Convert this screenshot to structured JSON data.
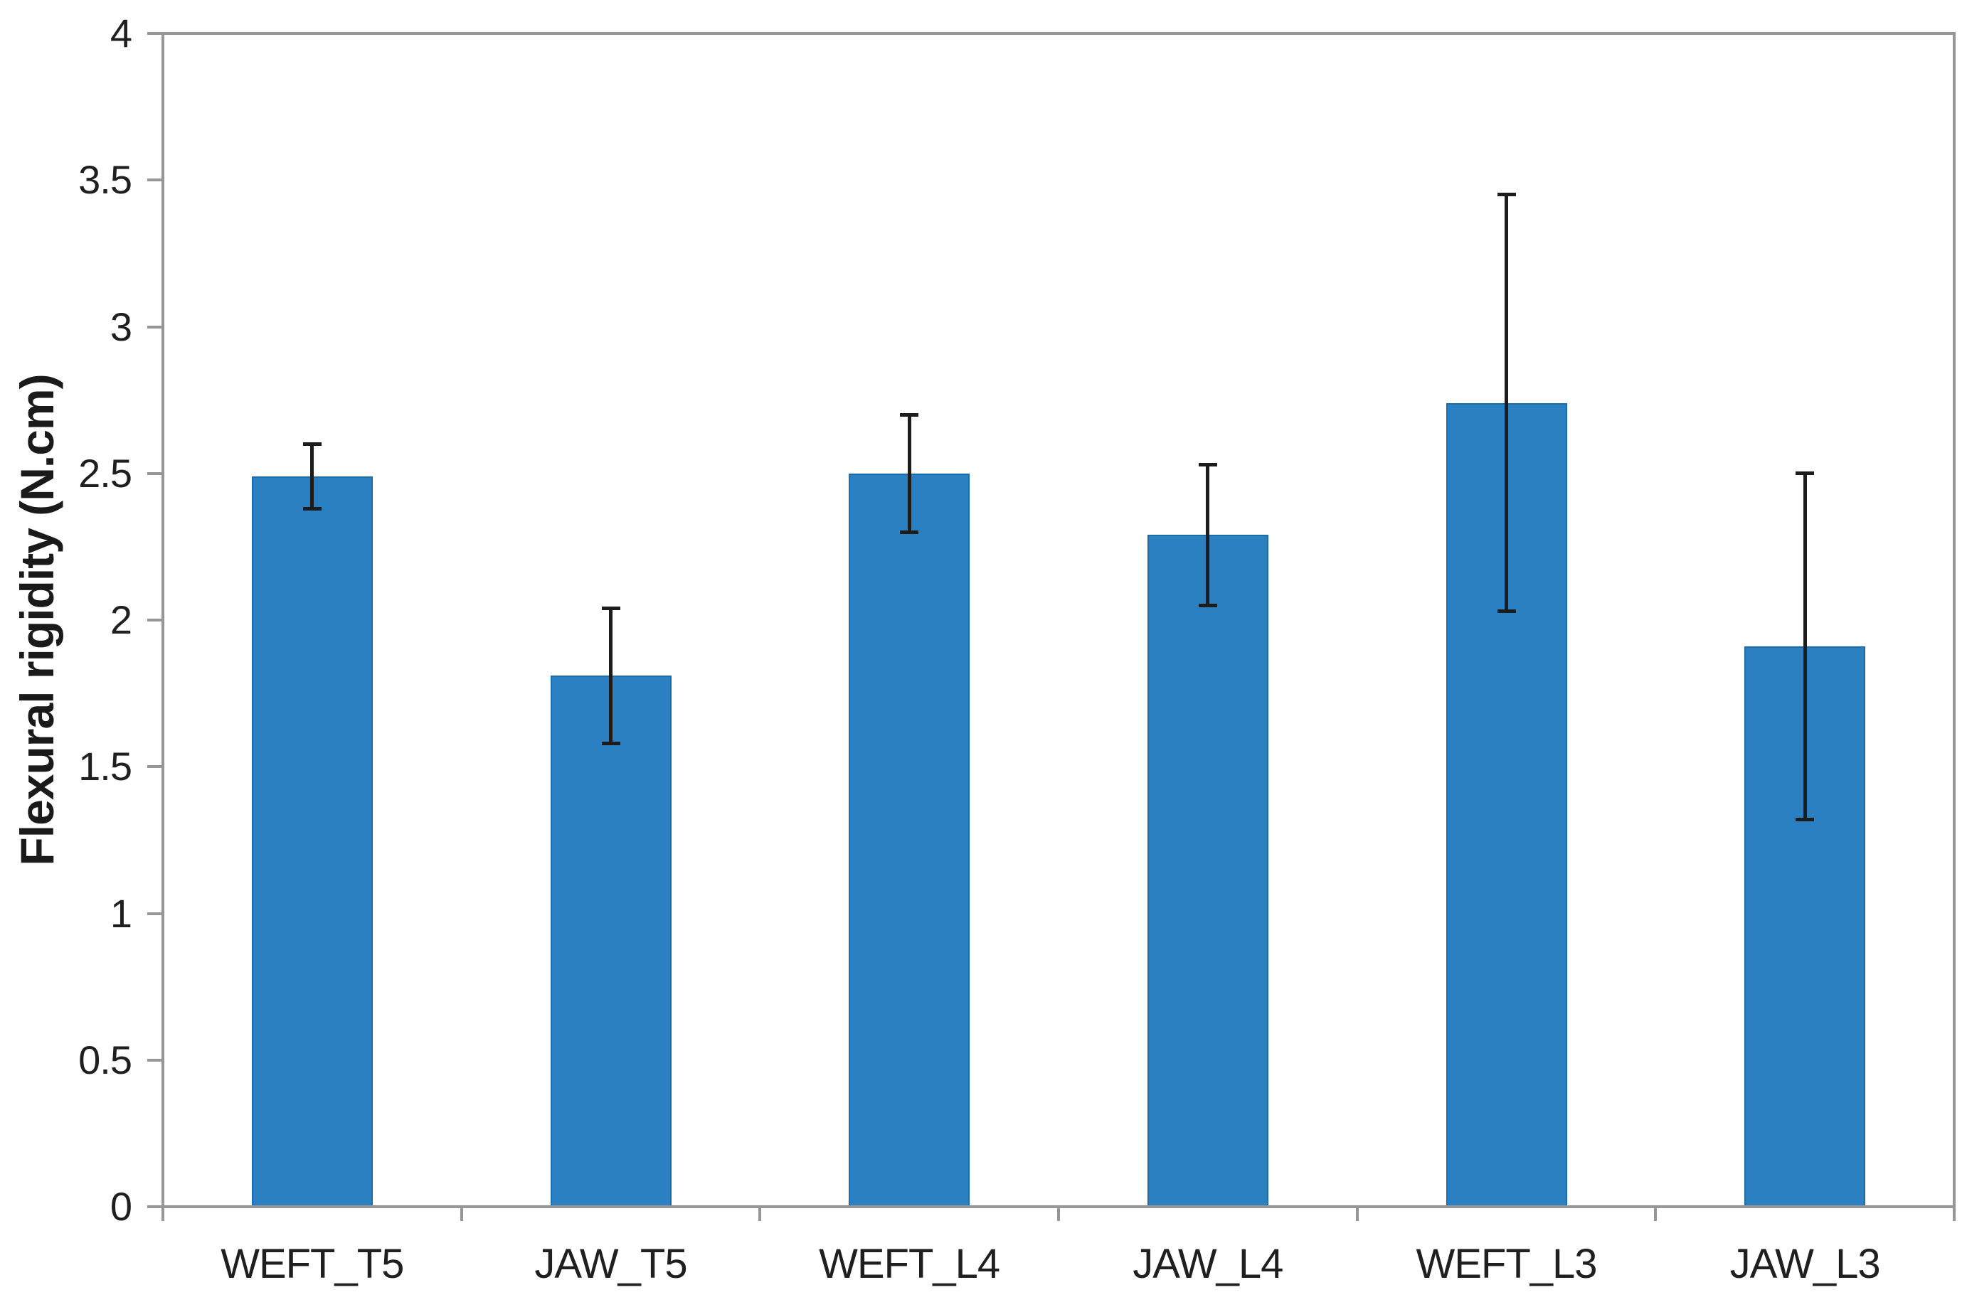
{
  "chart_data": {
    "type": "bar",
    "title": "",
    "xlabel": "",
    "ylabel": "Flexural rigidity (N.cm)",
    "categories": [
      "WEFT_T5",
      "JAW_T5",
      "WEFT_L4",
      "JAW_L4",
      "WEFT_L3",
      "JAW_L3"
    ],
    "values": [
      2.49,
      1.81,
      2.5,
      2.29,
      2.74,
      1.91
    ],
    "error_bars": [
      0.11,
      0.23,
      0.2,
      0.24,
      0.71,
      0.59
    ],
    "ylim": [
      0,
      4
    ],
    "ytick_labels": [
      "0",
      "0.5",
      "1",
      "1.5",
      "2",
      "2.5",
      "3",
      "3.5",
      "4"
    ],
    "grid": false,
    "legend_position": "none"
  },
  "colors": {
    "bar_fill": "#2A80C1",
    "bar_border": "#1E6CA6",
    "axis": "#969696",
    "error_bar": "#1C1C1C",
    "text": "#1F1F1F",
    "background": "#FFFFFF"
  }
}
